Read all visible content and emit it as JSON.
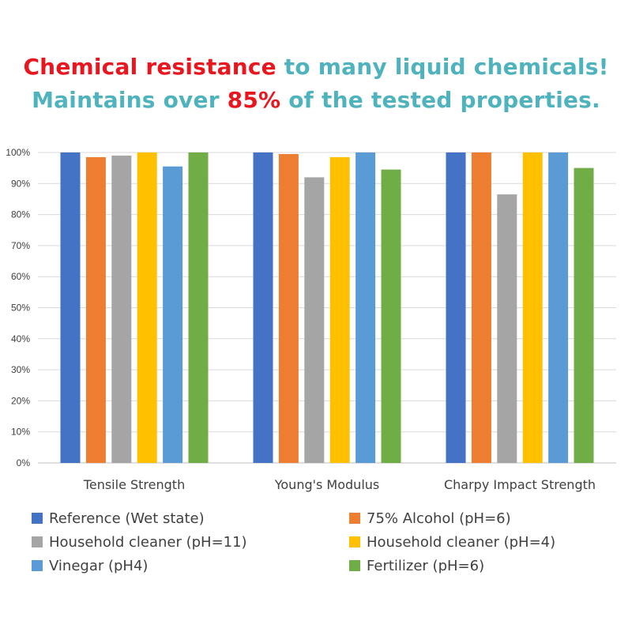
{
  "headline": {
    "line1": [
      {
        "text": "Chemical resistance",
        "color": "red"
      },
      {
        "text": " to many liquid chemicals!",
        "color": "teal"
      }
    ],
    "line2": [
      {
        "text": "Maintains over ",
        "color": "teal"
      },
      {
        "text": "85%",
        "color": "red"
      },
      {
        "text": " of the tested properties.",
        "color": "teal"
      }
    ]
  },
  "colors": {
    "red": "#e8171f",
    "teal": "#4fb3bd",
    "gridline": "#d9d9d9",
    "axis": "#bfbfbf"
  },
  "chart_data": {
    "type": "bar",
    "title": "",
    "xlabel": "",
    "ylabel": "",
    "ylim": [
      0,
      100
    ],
    "y_ticks": [
      0,
      10,
      20,
      30,
      40,
      50,
      60,
      70,
      80,
      90,
      100
    ],
    "y_tick_format": "percent",
    "grid": true,
    "legend_position": "bottom",
    "categories": [
      "Tensile Strength",
      "Young's Modulus",
      "Charpy Impact Strength"
    ],
    "series": [
      {
        "name": "Reference (Wet state)",
        "color": "#4472c4",
        "values": [
          100,
          100,
          100
        ]
      },
      {
        "name": "75% Alcohol (pH=6)",
        "color": "#ed7d31",
        "values": [
          98.5,
          99.5,
          100
        ]
      },
      {
        "name": "Household cleaner (pH=11)",
        "color": "#a5a5a5",
        "values": [
          99,
          92,
          86.5
        ]
      },
      {
        "name": "Household cleaner (pH=4)",
        "color": "#ffc000",
        "values": [
          100,
          98.5,
          100
        ]
      },
      {
        "name": "Vinegar (pH4)",
        "color": "#5b9bd5",
        "values": [
          95.5,
          100,
          100
        ]
      },
      {
        "name": "Fertilizer (pH=6)",
        "color": "#70ad47",
        "values": [
          100,
          94.5,
          95
        ]
      }
    ]
  }
}
